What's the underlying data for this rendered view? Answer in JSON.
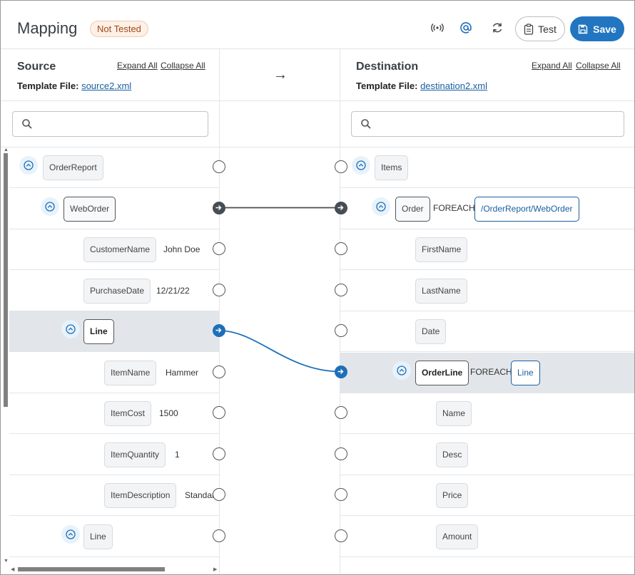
{
  "header": {
    "title": "Mapping",
    "status_badge": "Not Tested",
    "icons": [
      "broadcast-icon",
      "at-sign-icon",
      "refresh-icon"
    ],
    "test_label": "Test",
    "save_label": "Save"
  },
  "source": {
    "title": "Source",
    "expand_all": "Expand All",
    "collapse_all": "Collapse All",
    "template_label": "Template File:",
    "template_file": "source2.xml",
    "search_value": ""
  },
  "destination": {
    "title": "Destination",
    "expand_all": "Expand All",
    "collapse_all": "Collapse All",
    "template_label": "Template File:",
    "template_file": "destination2.xml",
    "search_value": ""
  },
  "mapping_arrow": "→",
  "source_rows": [
    {
      "name": "OrderReport",
      "value": "",
      "toggle": true,
      "bold": false,
      "dark": false,
      "selected": false
    },
    {
      "name": "WebOrder",
      "value": "",
      "toggle": true,
      "bold": false,
      "dark": true,
      "selected": false
    },
    {
      "name": "CustomerName",
      "value": "John Doe",
      "toggle": false,
      "bold": false,
      "dark": false,
      "selected": false
    },
    {
      "name": "PurchaseDate",
      "value": "12/21/22",
      "toggle": false,
      "bold": false,
      "dark": false,
      "selected": false
    },
    {
      "name": "Line",
      "value": "",
      "toggle": true,
      "bold": true,
      "dark": false,
      "selected": true
    },
    {
      "name": "ItemName",
      "value": "Hammer",
      "toggle": false,
      "bold": false,
      "dark": false,
      "selected": false
    },
    {
      "name": "ItemCost",
      "value": "1500",
      "toggle": false,
      "bold": false,
      "dark": false,
      "selected": false
    },
    {
      "name": "ItemQuantity",
      "value": "1",
      "toggle": false,
      "bold": false,
      "dark": false,
      "selected": false
    },
    {
      "name": "ItemDescription",
      "value": "Standar",
      "toggle": false,
      "bold": false,
      "dark": false,
      "selected": false
    },
    {
      "name": "Line",
      "value": "",
      "toggle": true,
      "bold": false,
      "dark": false,
      "selected": false
    }
  ],
  "destination_rows": [
    {
      "name": "Items",
      "foreach": "",
      "expr": "",
      "toggle": true,
      "bold": false,
      "selected": false
    },
    {
      "name": "Order",
      "foreach": "FOREACH",
      "expr": "/OrderReport/WebOrder",
      "toggle": true,
      "bold": false,
      "selected": false
    },
    {
      "name": "FirstName",
      "foreach": "",
      "expr": "",
      "toggle": false,
      "bold": false,
      "selected": false
    },
    {
      "name": "LastName",
      "foreach": "",
      "expr": "",
      "toggle": false,
      "bold": false,
      "selected": false
    },
    {
      "name": "Date",
      "foreach": "",
      "expr": "",
      "toggle": false,
      "bold": false,
      "selected": false
    },
    {
      "name": "OrderLine",
      "foreach": "FOREACH",
      "expr": "Line",
      "toggle": true,
      "bold": true,
      "selected": true
    },
    {
      "name": "Name",
      "foreach": "",
      "expr": "",
      "toggle": false,
      "bold": false,
      "selected": false
    },
    {
      "name": "Desc",
      "foreach": "",
      "expr": "",
      "toggle": false,
      "bold": false,
      "selected": false
    },
    {
      "name": "Price",
      "foreach": "",
      "expr": "",
      "toggle": false,
      "bold": false,
      "selected": false
    },
    {
      "name": "Amount",
      "foreach": "",
      "expr": "",
      "toggle": false,
      "bold": false,
      "selected": false
    }
  ],
  "mappings": [
    {
      "from_row": 1,
      "to_row": 1,
      "style": "dark"
    },
    {
      "from_row": 4,
      "to_row": 5,
      "style": "blue"
    }
  ],
  "colors": {
    "accent": "#2275c0",
    "badge_text": "#a0481a",
    "badge_bg": "#fdf0e7",
    "selected_row": "#e2e6ea",
    "mapping_dark": "#474d55",
    "mapping_blue": "#1e6fb8"
  }
}
